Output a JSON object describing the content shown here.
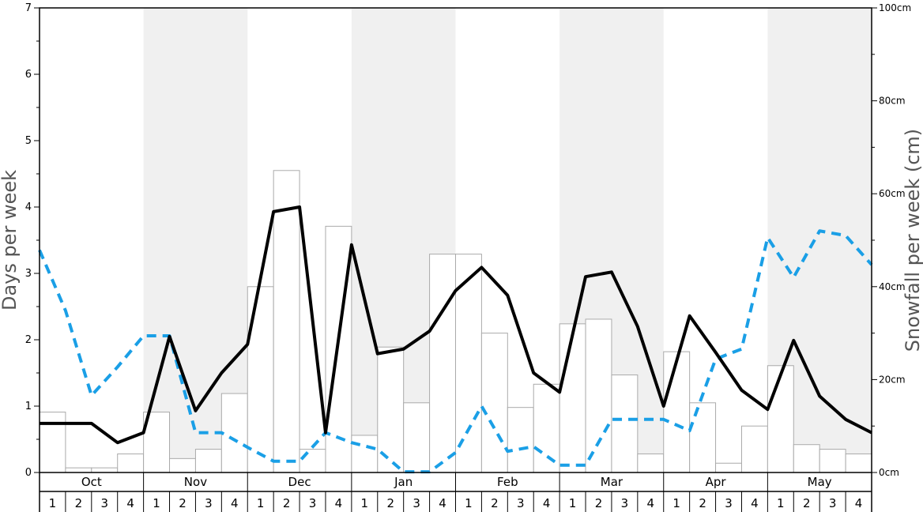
{
  "chart_data": {
    "type": "bar+line",
    "ylabel_left": "Days per week",
    "ylabel_right": "Snowfall per week (cm)",
    "ylim_left": [
      0,
      7
    ],
    "ylim_right": [
      0,
      100
    ],
    "left_ticks": [
      "0",
      "1",
      "2",
      "3",
      "4",
      "5",
      "6",
      "7"
    ],
    "right_ticks": [
      "0cm",
      "20cm",
      "40cm",
      "60cm",
      "80cm",
      "100cm"
    ],
    "months": [
      "Oct",
      "Nov",
      "Dec",
      "Jan",
      "Feb",
      "Mar",
      "Apr",
      "May"
    ],
    "weeks": [
      "1",
      "2",
      "3",
      "4"
    ],
    "shaded_months": [
      "Nov",
      "Jan",
      "Mar",
      "May"
    ],
    "colors": {
      "solid_line": "#000000",
      "dashed_line": "#1a9fe6",
      "bar_fill": "#ffffff",
      "bar_stroke": "#aaaaaa",
      "shade": "#f0f0f0"
    },
    "snowfall_bars_days": [
      0.91,
      0.07,
      0.07,
      0.28,
      0.91,
      0.21,
      0.35,
      1.19,
      2.8,
      4.55,
      0.35,
      3.71,
      0.56,
      1.89,
      1.05,
      3.29,
      3.29,
      2.1,
      0.98,
      1.33,
      2.24,
      2.31,
      1.47,
      0.28,
      1.82,
      1.05,
      0.14,
      0.7,
      1.61,
      0.42,
      0.35,
      0.28
    ],
    "solid_line_days": [
      0.74,
      0.74,
      0.74,
      0.45,
      0.6,
      2.05,
      0.93,
      1.5,
      1.93,
      3.93,
      4.0,
      0.6,
      3.43,
      1.79,
      1.86,
      2.13,
      2.74,
      3.09,
      2.67,
      1.5,
      1.21,
      2.95,
      3.02,
      2.2,
      1.0,
      2.36,
      1.81,
      1.24,
      0.95,
      1.99,
      1.15,
      0.8,
      0.6
    ],
    "dashed_line_days": [
      3.35,
      2.44,
      1.16,
      1.59,
      2.06,
      2.06,
      0.6,
      0.6,
      0.38,
      0.17,
      0.17,
      0.6,
      0.45,
      0.35,
      0.01,
      0.01,
      0.3,
      1.0,
      0.32,
      0.39,
      0.11,
      0.11,
      0.8,
      0.8,
      0.8,
      0.63,
      1.71,
      1.86,
      3.54,
      2.94,
      3.64,
      3.57,
      3.13
    ]
  }
}
